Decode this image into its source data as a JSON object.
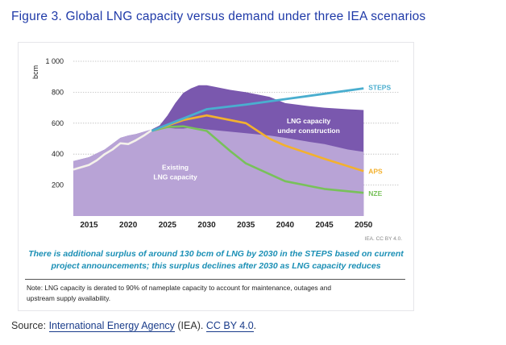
{
  "figure": {
    "title": "Figure 3. Global LNG capacity versus demand under three IEA scenarios",
    "caption_line1": "There is additional surplus of around 130 bcm of LNG by 2030 in the STEPS based on current",
    "caption_line2": "project announcements; this surplus declines after 2030 as LNG capacity reduces",
    "note_line1": "Note: LNG capacity is derated to 90% of nameplate capacity to account for maintenance, outages and",
    "note_line2": "upstream supply availability.",
    "credit": "IEA. CC BY 4.0."
  },
  "source": {
    "prefix": "Source: ",
    "link1": "International Energy Agency",
    "middle": " (IEA). ",
    "link2": "CC BY 4.0",
    "suffix": "."
  },
  "colors": {
    "existing": "#b8a3d6",
    "under_construction": "#7a58ae",
    "steps": "#4aaecf",
    "aps": "#f3b12e",
    "nze": "#78c15a",
    "history": "#f4f1ea",
    "label_text": "#ffffff"
  },
  "chart_data": {
    "type": "area",
    "ylabel": "bcm",
    "xlabel": "",
    "ylim": [
      0,
      1000
    ],
    "xlim": [
      2013,
      2051
    ],
    "yticks": [
      200,
      400,
      600,
      800,
      1000
    ],
    "ytick_labels": [
      "200",
      "400",
      "600",
      "800",
      "1 000"
    ],
    "xticks": [
      2015,
      2020,
      2025,
      2030,
      2035,
      2040,
      2045,
      2050
    ],
    "grid": "dotted horizontal",
    "area_labels": {
      "existing": [
        "Existing",
        "LNG capacity"
      ],
      "under_construction": [
        "LNG capacity",
        "under construction"
      ]
    },
    "series": [
      {
        "name": "Existing LNG capacity",
        "kind": "area",
        "x": [
          2013,
          2015,
          2017,
          2019,
          2020,
          2021,
          2022,
          2023,
          2024,
          2025,
          2026,
          2027,
          2028,
          2029,
          2030,
          2031,
          2033,
          2035,
          2038,
          2040,
          2043,
          2045,
          2048,
          2050
        ],
        "values": [
          355,
          380,
          430,
          505,
          520,
          530,
          545,
          560,
          560,
          570,
          565,
          565,
          570,
          568,
          560,
          555,
          545,
          535,
          520,
          505,
          480,
          465,
          430,
          415
        ]
      },
      {
        "name": "LNG capacity under construction",
        "kind": "area",
        "x": [
          2013,
          2015,
          2017,
          2019,
          2020,
          2021,
          2022,
          2023,
          2024,
          2025,
          2026,
          2027,
          2028,
          2029,
          2030,
          2031,
          2033,
          2035,
          2038,
          2040,
          2043,
          2045,
          2048,
          2050
        ],
        "values": [
          355,
          380,
          430,
          505,
          520,
          530,
          545,
          560,
          585,
          650,
          730,
          795,
          825,
          845,
          845,
          835,
          815,
          800,
          770,
          730,
          710,
          700,
          690,
          685
        ]
      },
      {
        "name": "History",
        "kind": "line",
        "x": [
          2013,
          2015,
          2016,
          2017,
          2018,
          2019,
          2020,
          2021,
          2022,
          2023
        ],
        "values": [
          300,
          330,
          360,
          400,
          430,
          470,
          465,
          490,
          520,
          555
        ]
      },
      {
        "name": "STEPS",
        "kind": "line",
        "label": "STEPS",
        "x": [
          2023,
          2025,
          2027,
          2030,
          2035,
          2040,
          2045,
          2050
        ],
        "values": [
          550,
          590,
          630,
          690,
          720,
          755,
          790,
          825
        ]
      },
      {
        "name": "APS",
        "kind": "line",
        "label": "APS",
        "x": [
          2023,
          2025,
          2027,
          2030,
          2035,
          2038,
          2040,
          2045,
          2050
        ],
        "values": [
          550,
          585,
          620,
          650,
          600,
          500,
          455,
          370,
          290
        ]
      },
      {
        "name": "NZE",
        "kind": "line",
        "label": "NZE",
        "x": [
          2023,
          2025,
          2027,
          2030,
          2033,
          2035,
          2040,
          2045,
          2050
        ],
        "values": [
          550,
          575,
          580,
          550,
          420,
          340,
          225,
          175,
          150
        ]
      }
    ]
  }
}
